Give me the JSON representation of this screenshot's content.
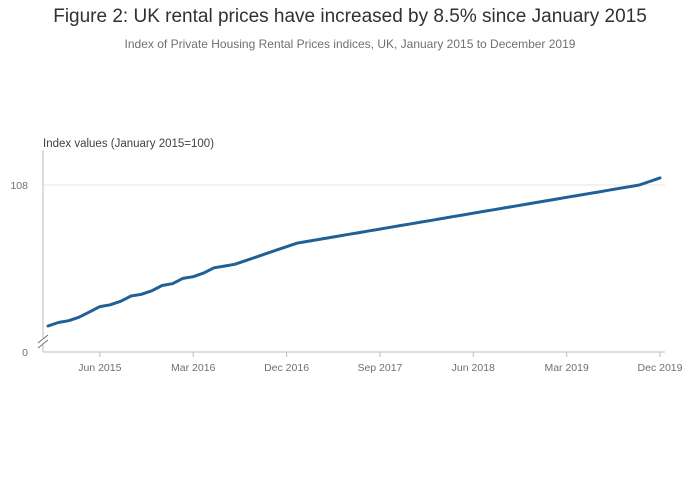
{
  "chart_data": {
    "type": "line",
    "title": "Figure 2: UK rental prices have increased by 8.5% since January 2015",
    "subtitle": "Index of Private Housing Rental Prices indices, UK, January 2015 to December 2019",
    "ylabel": "Index values (January 2015=100)",
    "xlabel": "",
    "y_ticks": [
      0,
      108
    ],
    "y_axis_break": true,
    "ylim_visible": [
      100,
      108
    ],
    "x_tick_labels": [
      "Jun 2015",
      "Mar 2016",
      "Dec 2016",
      "Sep 2017",
      "Jun 2018",
      "Mar 2019",
      "Dec 2019"
    ],
    "x_tick_indices": [
      5,
      14,
      23,
      32,
      41,
      50,
      59
    ],
    "grid": "horizontal",
    "line_color": "#206095",
    "series": [
      {
        "name": "",
        "x_start": "Jan 2015",
        "x_end": "Dec 2019",
        "values": [
          100.0,
          100.2,
          100.3,
          100.5,
          100.8,
          101.1,
          101.2,
          101.4,
          101.7,
          101.8,
          102.0,
          102.3,
          102.4,
          102.7,
          102.8,
          103.0,
          103.3,
          103.4,
          103.5,
          103.7,
          103.9,
          104.1,
          104.3,
          104.5,
          104.7,
          104.8,
          104.9,
          105.0,
          105.1,
          105.2,
          105.3,
          105.4,
          105.5,
          105.6,
          105.7,
          105.8,
          105.9,
          106.0,
          106.1,
          106.2,
          106.3,
          106.4,
          106.5,
          106.6,
          106.7,
          106.8,
          106.9,
          107.0,
          107.1,
          107.2,
          107.3,
          107.4,
          107.5,
          107.6,
          107.7,
          107.8,
          107.9,
          108.0,
          108.2,
          108.4
        ]
      }
    ]
  }
}
